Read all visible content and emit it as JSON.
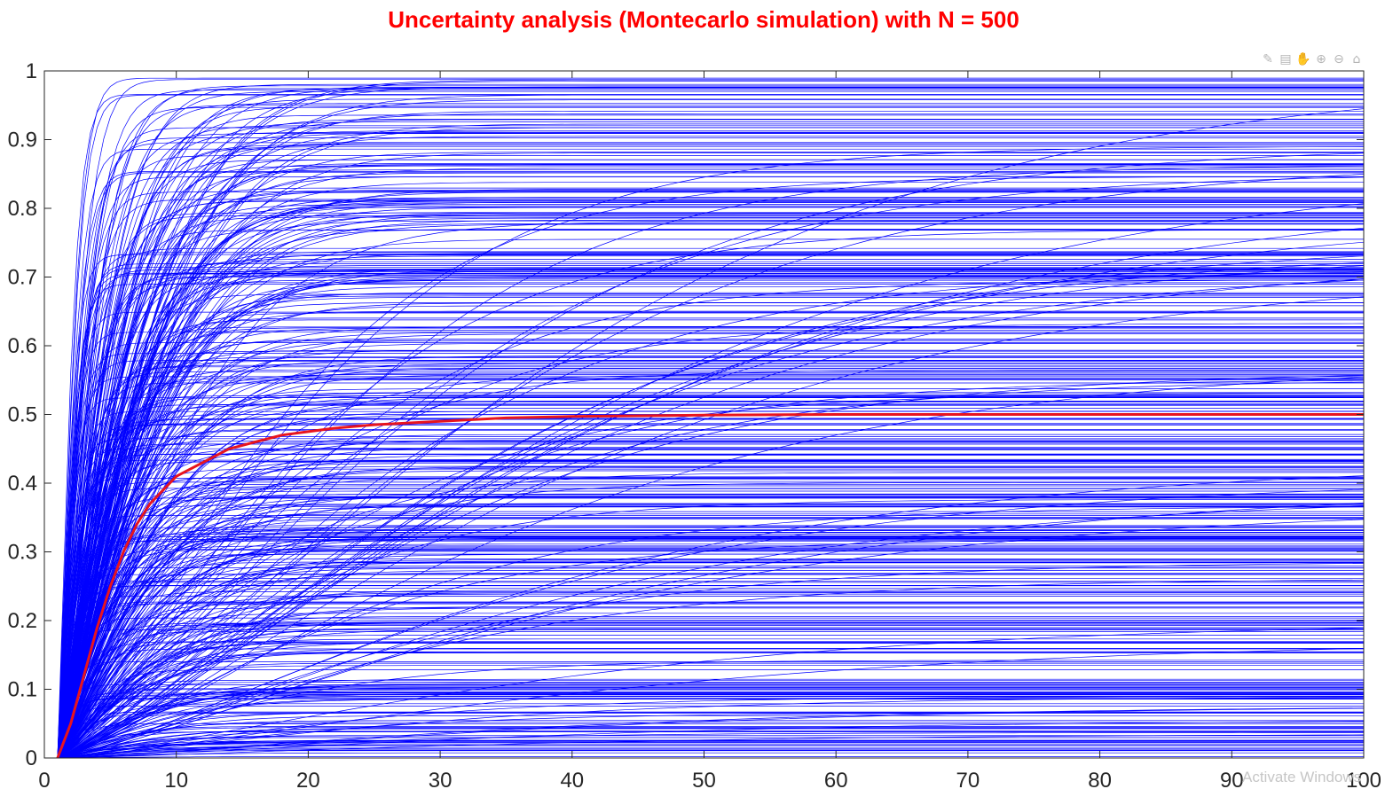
{
  "toolbar": {
    "icons": [
      "brush-icon",
      "data-tip-icon",
      "pan-icon",
      "zoom-in-icon",
      "zoom-out-icon",
      "home-icon"
    ]
  },
  "watermark": "Activate Windows",
  "colors": {
    "title": "#ff0000",
    "runs": "#0000ff",
    "mean": "#e8141e",
    "axis": "#262626"
  },
  "chart_data": {
    "type": "line",
    "title": "Uncertainty analysis (Montecarlo simulation) with N = 500",
    "xlabel": "",
    "ylabel": "",
    "xlim": [
      0,
      100
    ],
    "ylim": [
      0,
      1
    ],
    "xticks": [
      0,
      10,
      20,
      30,
      40,
      50,
      60,
      70,
      80,
      90,
      100
    ],
    "yticks": [
      0,
      0.1,
      0.2,
      0.3,
      0.4,
      0.5,
      0.6,
      0.7,
      0.8,
      0.9,
      1
    ],
    "xtick_labels": [
      "0",
      "10",
      "20",
      "30",
      "40",
      "50",
      "60",
      "70",
      "80",
      "90",
      "100"
    ],
    "ytick_labels": [
      "0",
      "0.1",
      "0.2",
      "0.3",
      "0.4",
      "0.5",
      "0.6",
      "0.7",
      "0.8",
      "0.9",
      "1"
    ],
    "grid": false,
    "legend": "none",
    "series": [
      {
        "role": "mean",
        "color": "#e8141e",
        "x": [
          1,
          2,
          3,
          4,
          5,
          6,
          7,
          8,
          9,
          10,
          12,
          14,
          16,
          18,
          20,
          22,
          25,
          30,
          35,
          40,
          50,
          60,
          70,
          80,
          90,
          100
        ],
        "y": [
          0,
          0.05,
          0.12,
          0.19,
          0.25,
          0.3,
          0.34,
          0.37,
          0.39,
          0.41,
          0.43,
          0.45,
          0.46,
          0.47,
          0.475,
          0.48,
          0.485,
          0.49,
          0.495,
          0.497,
          0.499,
          0.5,
          0.5,
          0.5,
          0.5,
          0.5
        ]
      },
      {
        "role": "runs",
        "count": 500,
        "color": "#0000ff",
        "start_x": 1,
        "start_y": 0,
        "final_values": [
          0.99,
          0.985,
          0.98,
          0.97,
          0.96,
          0.95,
          0.945,
          0.93,
          0.92,
          0.91,
          0.9,
          0.89,
          0.87,
          0.86,
          0.855,
          0.84,
          0.83,
          0.82,
          0.81,
          0.8,
          0.79,
          0.78,
          0.77,
          0.76,
          0.75,
          0.74,
          0.73,
          0.72,
          0.71,
          0.705,
          0.7,
          0.69,
          0.68,
          0.67,
          0.66,
          0.65,
          0.64,
          0.63,
          0.62,
          0.61,
          0.6,
          0.59,
          0.585,
          0.58,
          0.57,
          0.56,
          0.55,
          0.54,
          0.53,
          0.52,
          0.51,
          0.49,
          0.48,
          0.47,
          0.46,
          0.45,
          0.44,
          0.43,
          0.42,
          0.41,
          0.4,
          0.39,
          0.385,
          0.38,
          0.37,
          0.36,
          0.35,
          0.34,
          0.33,
          0.32,
          0.31,
          0.3,
          0.29,
          0.28,
          0.27,
          0.26,
          0.25,
          0.24,
          0.23,
          0.22,
          0.21,
          0.2,
          0.19,
          0.18,
          0.17,
          0.16,
          0.15,
          0.14,
          0.13,
          0.12,
          0.11,
          0.1,
          0.095,
          0.09,
          0.08,
          0.07,
          0.06,
          0.05,
          0.04,
          0.03,
          0.02,
          0.01,
          0.005
        ]
      }
    ]
  }
}
